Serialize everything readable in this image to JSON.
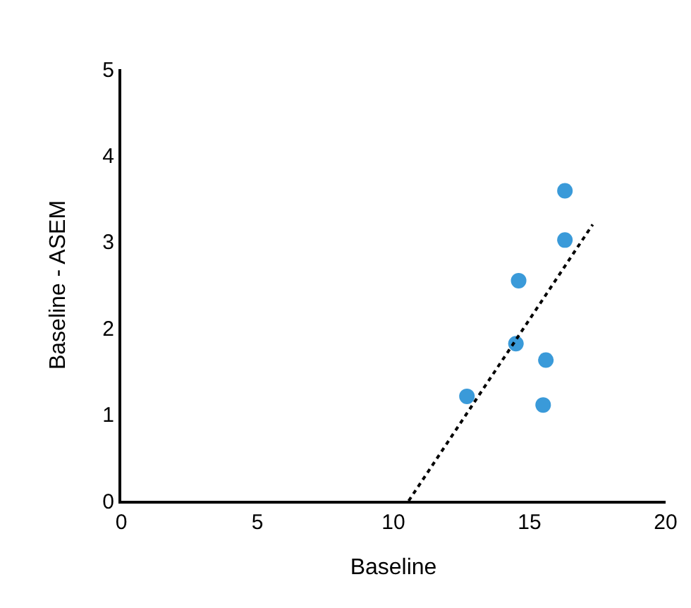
{
  "chart_data": {
    "type": "scatter",
    "xlabel": "Baseline",
    "ylabel": "Baseline - ASEM",
    "xlim": [
      0,
      20
    ],
    "ylim": [
      0,
      5
    ],
    "xticks": [
      0,
      5,
      10,
      15,
      20
    ],
    "yticks": [
      0,
      1,
      2,
      3,
      4,
      5
    ],
    "series": [
      {
        "color": "#3a9ad9",
        "marker": "circle",
        "x": [
          16.3,
          16.3,
          14.6,
          14.5,
          15.6,
          12.7,
          15.5
        ],
        "values": [
          3.59,
          3.02,
          2.55,
          1.82,
          1.63,
          1.21,
          1.11
        ]
      },
      {
        "type": "line",
        "color": "#000000",
        "marker": "none",
        "line_style": "dotted",
        "x": [
          10.56,
          17.32
        ],
        "values": [
          0,
          3.2
        ]
      }
    ]
  }
}
